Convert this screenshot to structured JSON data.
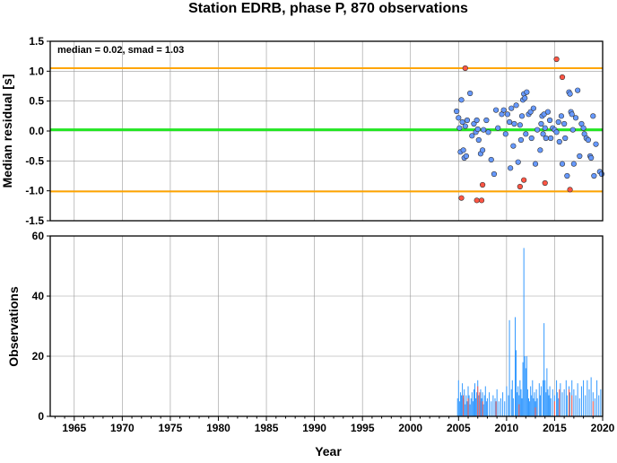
{
  "chart_data": [
    {
      "type": "scatter",
      "title": "Station EDRB, phase P, 870 observations",
      "ylabel": "Median residual [s]",
      "annotation": "median = 0.02, smad = 1.03",
      "xlim": [
        1962.5,
        2020
      ],
      "ylim": [
        -1.5,
        1.5
      ],
      "yticks": [
        "1.5",
        "1.0",
        "0.5",
        "0.0",
        "-0.5",
        "-1.0",
        "-1.5"
      ],
      "ytick_values": [
        1.5,
        1.0,
        0.5,
        0.0,
        -0.5,
        -1.0,
        -1.5
      ],
      "grid": true,
      "reference_lines": [
        {
          "value": 0.02,
          "color": "#22e622"
        },
        {
          "value": 1.05,
          "color": "#ffa500"
        },
        {
          "value": -1.01,
          "color": "#ffa500"
        }
      ],
      "series": [
        {
          "color": "#6699ff",
          "points": [
            [
              2004.8,
              0.33
            ],
            [
              2005.0,
              0.22
            ],
            [
              2005.1,
              0.05
            ],
            [
              2005.2,
              -0.35
            ],
            [
              2005.3,
              0.52
            ],
            [
              2005.4,
              0.15
            ],
            [
              2005.5,
              -0.32
            ],
            [
              2005.6,
              -0.45
            ],
            [
              2005.7,
              0.08
            ],
            [
              2005.8,
              -0.42
            ],
            [
              2005.9,
              0.18
            ],
            [
              2006.2,
              0.63
            ],
            [
              2006.4,
              -0.08
            ],
            [
              2006.6,
              0.12
            ],
            [
              2006.8,
              -0.02
            ],
            [
              2006.9,
              0.18
            ],
            [
              2007.0,
              0.03
            ],
            [
              2007.1,
              -0.15
            ],
            [
              2007.3,
              -0.38
            ],
            [
              2007.5,
              -0.32
            ],
            [
              2007.6,
              0.02
            ],
            [
              2007.9,
              0.18
            ],
            [
              2008.1,
              -0.02
            ],
            [
              2008.4,
              -0.48
            ],
            [
              2008.7,
              -0.72
            ],
            [
              2008.9,
              0.35
            ],
            [
              2009.1,
              0.05
            ],
            [
              2009.5,
              0.28
            ],
            [
              2009.7,
              0.35
            ],
            [
              2009.9,
              -0.05
            ],
            [
              2010.1,
              0.28
            ],
            [
              2010.3,
              0.15
            ],
            [
              2010.4,
              -0.62
            ],
            [
              2010.5,
              0.38
            ],
            [
              2010.7,
              -0.25
            ],
            [
              2010.8,
              0.12
            ],
            [
              2011.0,
              0.43
            ],
            [
              2011.2,
              -0.52
            ],
            [
              2011.4,
              0.1
            ],
            [
              2011.5,
              -0.15
            ],
            [
              2011.6,
              0.25
            ],
            [
              2011.7,
              0.52
            ],
            [
              2011.8,
              0.62
            ],
            [
              2011.9,
              0.55
            ],
            [
              2012.0,
              -0.05
            ],
            [
              2012.1,
              0.65
            ],
            [
              2012.3,
              0.28
            ],
            [
              2012.5,
              0.32
            ],
            [
              2012.6,
              -0.12
            ],
            [
              2012.8,
              0.38
            ],
            [
              2013.0,
              -0.55
            ],
            [
              2013.2,
              0.02
            ],
            [
              2013.5,
              -0.32
            ],
            [
              2013.6,
              0.12
            ],
            [
              2013.7,
              0.25
            ],
            [
              2013.8,
              -0.05
            ],
            [
              2013.9,
              0.28
            ],
            [
              2014.0,
              0.05
            ],
            [
              2014.1,
              -0.12
            ],
            [
              2014.3,
              0.32
            ],
            [
              2014.5,
              0.18
            ],
            [
              2014.6,
              -0.12
            ],
            [
              2014.8,
              0.05
            ],
            [
              2015.0,
              0.02
            ],
            [
              2015.2,
              -0.02
            ],
            [
              2015.4,
              0.15
            ],
            [
              2015.5,
              -0.18
            ],
            [
              2015.7,
              0.25
            ],
            [
              2015.8,
              -0.55
            ],
            [
              2016.0,
              0.12
            ],
            [
              2016.1,
              -0.12
            ],
            [
              2016.3,
              -0.75
            ],
            [
              2016.5,
              0.65
            ],
            [
              2016.6,
              0.62
            ],
            [
              2016.7,
              0.32
            ],
            [
              2016.8,
              0.28
            ],
            [
              2016.9,
              0.02
            ],
            [
              2017.0,
              -0.55
            ],
            [
              2017.2,
              0.22
            ],
            [
              2017.4,
              0.68
            ],
            [
              2017.6,
              -0.42
            ],
            [
              2017.8,
              0.12
            ],
            [
              2018.0,
              0.05
            ],
            [
              2018.1,
              -0.05
            ],
            [
              2018.3,
              -0.12
            ],
            [
              2018.5,
              -0.15
            ],
            [
              2018.7,
              -0.42
            ],
            [
              2018.8,
              -0.45
            ],
            [
              2019.0,
              0.25
            ],
            [
              2019.1,
              -0.75
            ],
            [
              2019.3,
              -0.22
            ],
            [
              2019.7,
              -0.68
            ],
            [
              2019.9,
              -0.72
            ]
          ]
        },
        {
          "color": "#ff5544",
          "points": [
            [
              2005.3,
              -1.12
            ],
            [
              2005.7,
              1.05
            ],
            [
              2006.9,
              -1.16
            ],
            [
              2007.4,
              -1.16
            ],
            [
              2007.5,
              -0.9
            ],
            [
              2011.4,
              -0.93
            ],
            [
              2011.8,
              -0.82
            ],
            [
              2014.0,
              -0.87
            ],
            [
              2015.2,
              1.2
            ],
            [
              2015.8,
              0.9
            ],
            [
              2016.6,
              -0.98
            ]
          ]
        }
      ]
    },
    {
      "type": "bar",
      "xlabel": "Year",
      "ylabel": "Observations",
      "xlim": [
        1962.5,
        2020
      ],
      "ylim": [
        0,
        60
      ],
      "xticks": [
        "1965",
        "1970",
        "1975",
        "1980",
        "1985",
        "1990",
        "1995",
        "2000",
        "2005",
        "2010",
        "2015",
        "2020"
      ],
      "xtick_values": [
        1965,
        1970,
        1975,
        1980,
        1985,
        1990,
        1995,
        2000,
        2005,
        2010,
        2015,
        2020
      ],
      "yticks": [
        "60",
        "40",
        "20",
        "0"
      ],
      "ytick_values": [
        60,
        40,
        20,
        0
      ],
      "grid": true,
      "series": [
        {
          "color": "#3399ff",
          "bars": [
            [
              2004.9,
              6
            ],
            [
              2005.0,
              12
            ],
            [
              2005.1,
              5
            ],
            [
              2005.2,
              8
            ],
            [
              2005.3,
              7
            ],
            [
              2005.4,
              11
            ],
            [
              2005.5,
              6
            ],
            [
              2005.6,
              9
            ],
            [
              2005.7,
              4
            ],
            [
              2005.8,
              7
            ],
            [
              2005.9,
              5
            ],
            [
              2006.0,
              10
            ],
            [
              2006.1,
              7
            ],
            [
              2006.2,
              4
            ],
            [
              2006.3,
              6
            ],
            [
              2006.4,
              8
            ],
            [
              2006.5,
              5
            ],
            [
              2006.6,
              9
            ],
            [
              2006.7,
              11
            ],
            [
              2006.8,
              6
            ],
            [
              2006.9,
              8
            ],
            [
              2007.0,
              12
            ],
            [
              2007.1,
              7
            ],
            [
              2007.2,
              5
            ],
            [
              2007.3,
              9
            ],
            [
              2007.4,
              6
            ],
            [
              2007.5,
              8
            ],
            [
              2007.6,
              4
            ],
            [
              2007.7,
              7
            ],
            [
              2007.8,
              10
            ],
            [
              2007.9,
              5
            ],
            [
              2008.0,
              6
            ],
            [
              2008.2,
              8
            ],
            [
              2008.4,
              5
            ],
            [
              2008.6,
              7
            ],
            [
              2008.8,
              6
            ],
            [
              2009.0,
              9
            ],
            [
              2009.2,
              5
            ],
            [
              2009.4,
              6
            ],
            [
              2009.6,
              8
            ],
            [
              2009.8,
              5
            ],
            [
              2010.0,
              10
            ],
            [
              2010.2,
              7
            ],
            [
              2010.3,
              32
            ],
            [
              2010.5,
              9
            ],
            [
              2010.6,
              12
            ],
            [
              2010.7,
              6
            ],
            [
              2010.9,
              33
            ],
            [
              2011.0,
              22
            ],
            [
              2011.1,
              8
            ],
            [
              2011.2,
              10
            ],
            [
              2011.3,
              7
            ],
            [
              2011.4,
              12
            ],
            [
              2011.5,
              9
            ],
            [
              2011.6,
              6
            ],
            [
              2011.7,
              18
            ],
            [
              2011.8,
              56
            ],
            [
              2011.9,
              20
            ],
            [
              2012.0,
              16
            ],
            [
              2012.1,
              20
            ],
            [
              2012.2,
              9
            ],
            [
              2012.3,
              6
            ],
            [
              2012.4,
              5
            ],
            [
              2012.5,
              10
            ],
            [
              2012.6,
              7
            ],
            [
              2012.7,
              12
            ],
            [
              2012.8,
              6
            ],
            [
              2012.9,
              8
            ],
            [
              2013.0,
              5
            ],
            [
              2013.1,
              9
            ],
            [
              2013.2,
              6
            ],
            [
              2013.4,
              11
            ],
            [
              2013.5,
              7
            ],
            [
              2013.6,
              10
            ],
            [
              2013.8,
              12
            ],
            [
              2013.9,
              31
            ],
            [
              2014.0,
              12
            ],
            [
              2014.1,
              8
            ],
            [
              2014.2,
              16
            ],
            [
              2014.3,
              9
            ],
            [
              2014.4,
              7
            ],
            [
              2014.5,
              10
            ],
            [
              2014.6,
              6
            ],
            [
              2014.8,
              9
            ],
            [
              2015.0,
              7
            ],
            [
              2015.2,
              12
            ],
            [
              2015.3,
              8
            ],
            [
              2015.4,
              6
            ],
            [
              2015.6,
              11
            ],
            [
              2015.8,
              8
            ],
            [
              2016.0,
              9
            ],
            [
              2016.2,
              12
            ],
            [
              2016.3,
              7
            ],
            [
              2016.5,
              10
            ],
            [
              2016.6,
              8
            ],
            [
              2016.8,
              12
            ],
            [
              2017.0,
              9
            ],
            [
              2017.2,
              7
            ],
            [
              2017.4,
              11
            ],
            [
              2017.6,
              6
            ],
            [
              2017.8,
              10
            ],
            [
              2018.0,
              12
            ],
            [
              2018.2,
              7
            ],
            [
              2018.4,
              12
            ],
            [
              2018.6,
              9
            ],
            [
              2018.8,
              13
            ],
            [
              2019.0,
              8
            ],
            [
              2019.2,
              6
            ],
            [
              2019.4,
              12
            ],
            [
              2019.6,
              7
            ],
            [
              2019.8,
              9
            ],
            [
              2020.0,
              8
            ]
          ]
        },
        {
          "color": "#ff5544",
          "bars": [
            [
              2005.5,
              7
            ],
            [
              2006.0,
              6
            ],
            [
              2007.0,
              10
            ],
            [
              2007.2,
              8
            ],
            [
              2007.5,
              5
            ],
            [
              2008.9,
              5
            ],
            [
              2011.3,
              4
            ],
            [
              2013.0,
              3
            ],
            [
              2015.0,
              5
            ],
            [
              2015.5,
              9
            ],
            [
              2016.5,
              9
            ],
            [
              2016.8,
              7
            ],
            [
              2019.0,
              5
            ]
          ]
        }
      ]
    }
  ]
}
